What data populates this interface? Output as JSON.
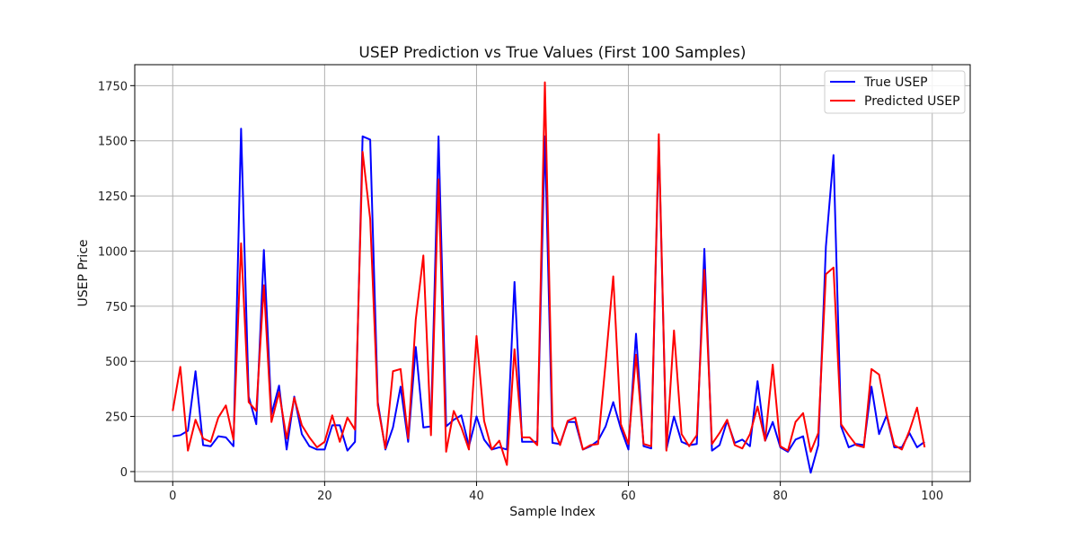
{
  "chart_data": {
    "type": "line",
    "title": "USEP Prediction vs True Values (First 100 Samples)",
    "xlabel": "Sample Index",
    "ylabel": "USEP Price",
    "xlim": [
      -5,
      105
    ],
    "ylim": [
      -45,
      1845
    ],
    "xticks": [
      0,
      20,
      40,
      60,
      80,
      100
    ],
    "yticks": [
      0,
      250,
      500,
      750,
      1000,
      1250,
      1500,
      1750
    ],
    "grid": true,
    "legend_position": "top-right",
    "x": [
      0,
      1,
      2,
      3,
      4,
      5,
      6,
      7,
      8,
      9,
      10,
      11,
      12,
      13,
      14,
      15,
      16,
      17,
      18,
      19,
      20,
      21,
      22,
      23,
      24,
      25,
      26,
      27,
      28,
      29,
      30,
      31,
      32,
      33,
      34,
      35,
      36,
      37,
      38,
      39,
      40,
      41,
      42,
      43,
      44,
      45,
      46,
      47,
      48,
      49,
      50,
      51,
      52,
      53,
      54,
      55,
      56,
      57,
      58,
      59,
      60,
      61,
      62,
      63,
      64,
      65,
      66,
      67,
      68,
      69,
      70,
      71,
      72,
      73,
      74,
      75,
      76,
      77,
      78,
      79,
      80,
      81,
      82,
      83,
      84,
      85,
      86,
      87,
      88,
      89,
      90,
      91,
      92,
      93,
      94,
      95,
      96,
      97,
      98,
      99
    ],
    "series": [
      {
        "name": "True USEP",
        "color": "#0000ff",
        "values": [
          160,
          165,
          185,
          455,
          120,
          115,
          160,
          155,
          115,
          1555,
          340,
          215,
          1005,
          260,
          390,
          100,
          340,
          170,
          115,
          100,
          100,
          210,
          210,
          95,
          135,
          1520,
          1505,
          315,
          100,
          200,
          385,
          135,
          565,
          200,
          205,
          1520,
          205,
          235,
          255,
          115,
          250,
          145,
          100,
          110,
          100,
          860,
          135,
          135,
          135,
          1520,
          130,
          125,
          225,
          225,
          100,
          115,
          140,
          205,
          315,
          195,
          100,
          625,
          115,
          105,
          1500,
          100,
          250,
          135,
          120,
          125,
          1010,
          95,
          120,
          230,
          130,
          145,
          115,
          410,
          140,
          225,
          110,
          90,
          145,
          160,
          -5,
          120,
          1020,
          1435,
          205,
          110,
          125,
          120,
          385,
          170,
          255,
          110,
          110,
          175,
          110,
          135
        ]
      },
      {
        "name": "Predicted USEP",
        "color": "#ff0000",
        "values": [
          275,
          475,
          95,
          235,
          150,
          135,
          245,
          300,
          145,
          1035,
          315,
          275,
          845,
          225,
          360,
          150,
          335,
          210,
          155,
          110,
          135,
          255,
          135,
          245,
          190,
          1450,
          1145,
          300,
          105,
          455,
          465,
          150,
          690,
          980,
          165,
          1325,
          90,
          275,
          200,
          100,
          615,
          230,
          100,
          140,
          30,
          555,
          155,
          155,
          120,
          1765,
          205,
          120,
          230,
          245,
          100,
          120,
          125,
          495,
          885,
          215,
          125,
          530,
          125,
          115,
          1530,
          95,
          640,
          170,
          115,
          165,
          915,
          125,
          175,
          235,
          120,
          105,
          170,
          295,
          140,
          485,
          115,
          95,
          225,
          265,
          90,
          175,
          895,
          925,
          215,
          165,
          120,
          110,
          465,
          440,
          260,
          120,
          100,
          185,
          290,
          110
        ]
      }
    ]
  }
}
